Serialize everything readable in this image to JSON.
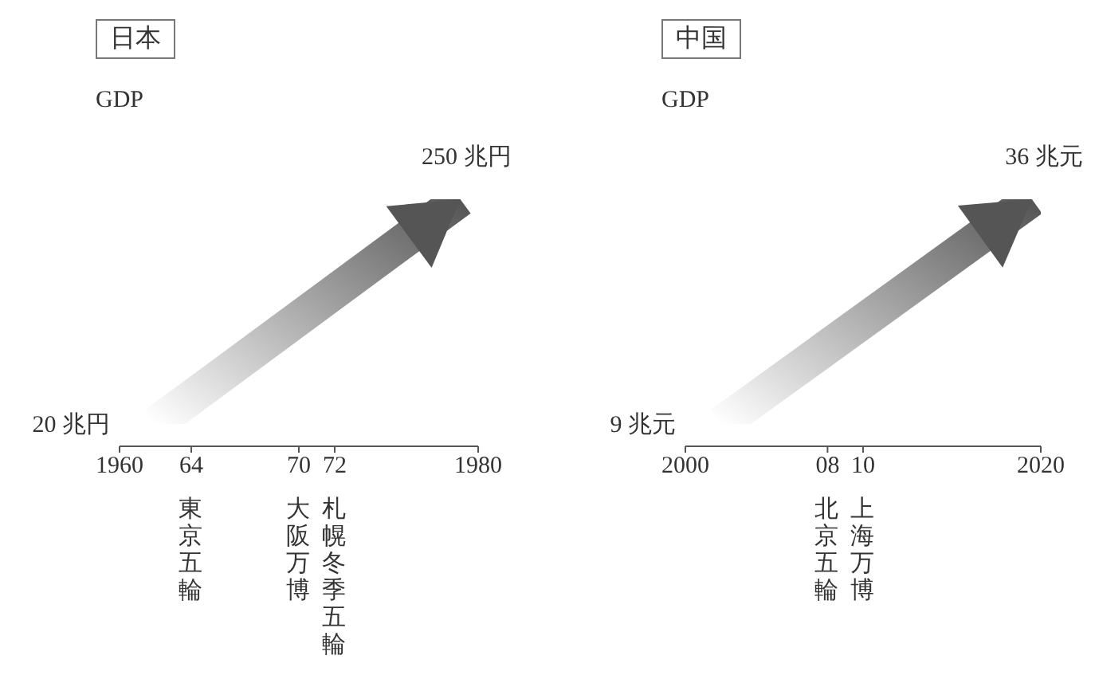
{
  "chart_data": [
    {
      "type": "line",
      "title": "日本",
      "ylabel": "GDP",
      "x": [
        1962,
        1979
      ],
      "values": [
        20,
        250
      ],
      "value_labels": [
        "20 兆円",
        "250 兆円"
      ],
      "color": "#555555",
      "xlim": [
        1960,
        1980
      ],
      "xticks": [
        1960,
        {
          "value": 1964,
          "label": "64"
        },
        {
          "value": 1970,
          "label": "70"
        },
        {
          "value": 1972,
          "label": "72"
        },
        1980
      ],
      "tick_labels": "x",
      "annotations": [
        "東京五輪",
        "大阪万博",
        "札幌冬季五輪"
      ]
    },
    {
      "type": "line",
      "title": "中国",
      "ylabel": "GDP",
      "x": [
        2002,
        2019.5
      ],
      "values": [
        9,
        36
      ],
      "value_labels": [
        "9 兆元",
        "36 兆元"
      ],
      "color": "#555555",
      "xlim": [
        2000,
        2020
      ],
      "xticks": [
        2000,
        {
          "value": 2008,
          "label": "08"
        },
        {
          "value": 2010,
          "label": "10"
        },
        2020
      ],
      "tick_labels": "x",
      "annotations": [
        "北京五輪",
        "上海万博"
      ]
    }
  ]
}
